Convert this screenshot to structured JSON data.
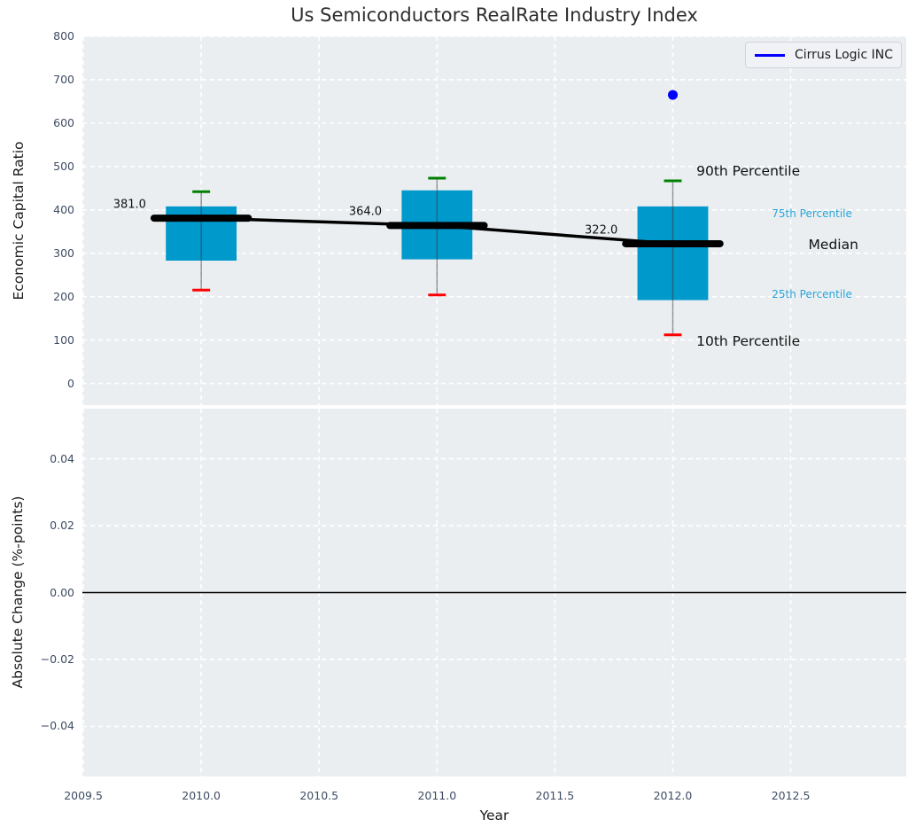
{
  "chart_data": {
    "type": "boxplot",
    "title": "Us Semiconductors RealRate Industry Index",
    "xlabel": "Year",
    "xlim": [
      2009.496,
      2012.99
    ],
    "xticks": [
      {
        "v": 2009.5,
        "label": "2009.5"
      },
      {
        "v": 2010.0,
        "label": "2010.0"
      },
      {
        "v": 2010.5,
        "label": "2010.5"
      },
      {
        "v": 2011.0,
        "label": "2011.0"
      },
      {
        "v": 2011.5,
        "label": "2011.5"
      },
      {
        "v": 2012.0,
        "label": "2012.0"
      },
      {
        "v": 2012.5,
        "label": "2012.5"
      }
    ],
    "legend": {
      "position": "top-right",
      "entries": [
        {
          "label": "Cirrus Logic INC",
          "color": "#0000ff",
          "marker": "line"
        }
      ]
    },
    "grid": true,
    "panels": [
      {
        "id": "economic-capital-ratio",
        "ylabel": "Economic Capital Ratio",
        "ylim": [
          -50,
          800
        ],
        "yticks": [
          {
            "v": 800,
            "label": "800"
          },
          {
            "v": 700,
            "label": "700"
          },
          {
            "v": 600,
            "label": "600"
          },
          {
            "v": 500,
            "label": "500"
          },
          {
            "v": 400,
            "label": "400"
          },
          {
            "v": 300,
            "label": "300"
          },
          {
            "v": 200,
            "label": "200"
          },
          {
            "v": 100,
            "label": "100"
          },
          {
            "v": 0,
            "label": "0"
          }
        ],
        "boxes": [
          {
            "year": 2010,
            "p10": 215,
            "p25": 283,
            "median": 381,
            "p75": 408,
            "p90": 442,
            "median_label": "381.0"
          },
          {
            "year": 2011,
            "p10": 204,
            "p25": 286,
            "median": 364,
            "p75": 445,
            "p90": 473,
            "median_label": "364.0"
          },
          {
            "year": 2012,
            "p10": 112,
            "p25": 192,
            "median": 322,
            "p75": 408,
            "p90": 467,
            "median_label": "322.0"
          }
        ],
        "median_trend": {
          "x": [
            2010,
            2011,
            2012
          ],
          "y": [
            381,
            364,
            322
          ]
        },
        "points": [
          {
            "series": "Cirrus Logic INC",
            "year": 2012,
            "value": 665
          }
        ],
        "annotations": [
          {
            "text": "90th Percentile",
            "year": 2012.1,
            "value": 490,
            "style": "large-black"
          },
          {
            "text": "75th Percentile",
            "year": 2012.42,
            "value": 392,
            "style": "small-accent"
          },
          {
            "text": "Median",
            "year": 2012.575,
            "value": 320,
            "style": "large-black"
          },
          {
            "text": "25th Percentile",
            "year": 2012.42,
            "value": 206,
            "style": "small-accent"
          },
          {
            "text": "10th Percentile",
            "year": 2012.1,
            "value": 97,
            "style": "large-black"
          }
        ]
      },
      {
        "id": "absolute-change",
        "ylabel": "Absolute Change (%-points)",
        "ylim": [
          -0.055,
          0.055
        ],
        "yticks": [
          {
            "v": 0.04,
            "label": "0.04"
          },
          {
            "v": 0.02,
            "label": "0.02"
          },
          {
            "v": 0.0,
            "label": "0.00"
          },
          {
            "v": -0.02,
            "label": "−0.02"
          },
          {
            "v": -0.04,
            "label": "−0.04"
          }
        ],
        "zero_line": {
          "value": 0.0,
          "color": "#000000"
        }
      }
    ],
    "colors": {
      "box_fill": "#0099cc",
      "cap_top": "#008000",
      "cap_bottom": "#ff0000",
      "whisker": "#3c3c3c",
      "median": "#000000",
      "point": "#0000ff",
      "accent_text": "#2aa5d8",
      "plot_bg": "#eaeef1",
      "grid": "#ffffff",
      "tick_text": "#3e4c63"
    }
  }
}
